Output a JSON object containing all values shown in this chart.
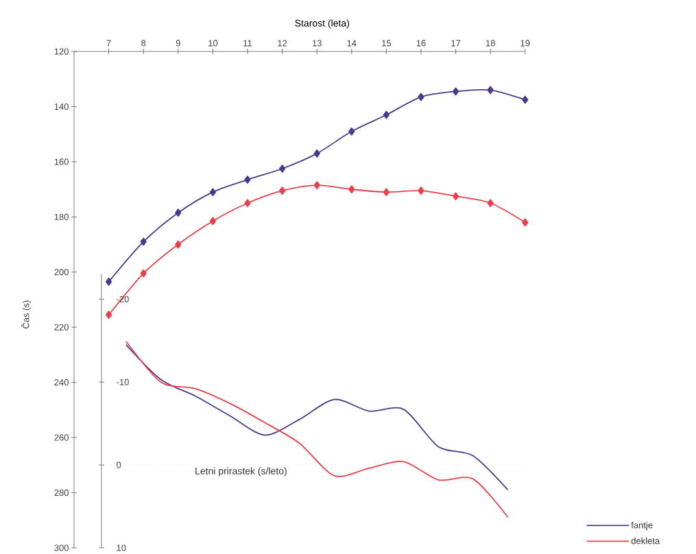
{
  "chart_data": {
    "type": "line",
    "xlabel": "Starost (leta)",
    "ylabel": "Čas (s)",
    "y2label": "Letni prirastek (s/leto)",
    "x": [
      7,
      8,
      9,
      10,
      11,
      12,
      13,
      14,
      15,
      16,
      17,
      18,
      19
    ],
    "series": [
      {
        "color": "#4b3a8c",
        "marker": "diamond",
        "values": [
          203.5,
          189,
          178.5,
          171,
          166.5,
          162.5,
          157,
          149,
          143,
          136.5,
          134.5,
          134,
          137.5
        ]
      },
      {
        "color": "#e8404a",
        "marker": "diamond",
        "values": [
          215.5,
          200.5,
          190,
          181.5,
          175,
          170.5,
          168.5,
          170,
          171,
          170.5,
          172.5,
          175,
          182
        ]
      },
      {
        "name": "fantje",
        "color": "#4b3a8c",
        "axis": "y2",
        "marker": "none",
        "x": [
          7.5,
          8.5,
          9.5,
          10.5,
          11.5,
          12.5,
          13.5,
          14.5,
          15.5,
          16.5,
          17.5,
          18.5
        ],
        "values": [
          -14.5,
          -10.3,
          -8.3,
          -5.9,
          -3.6,
          -5.5,
          -7.9,
          -6.5,
          -6.7,
          -2.2,
          -1.1,
          3.0
        ]
      },
      {
        "name": "dekleta",
        "color": "#e8404a",
        "axis": "y2",
        "marker": "none",
        "x": [
          7.5,
          8.5,
          9.5,
          10.5,
          11.5,
          12.5,
          13.5,
          14.5,
          15.5,
          16.5,
          17.5,
          18.5
        ],
        "values": [
          -14.9,
          -10.0,
          -9.2,
          -7.4,
          -5.1,
          -2.6,
          1.3,
          0.4,
          -0.4,
          1.8,
          1.7,
          6.3
        ]
      }
    ],
    "xlim": [
      6,
      19
    ],
    "xticks": [
      7,
      8,
      9,
      10,
      11,
      12,
      13,
      14,
      15,
      16,
      17,
      18,
      19
    ],
    "ylim": [
      300,
      120
    ],
    "yticks": [
      120,
      140,
      160,
      180,
      200,
      220,
      240,
      260,
      280,
      300
    ],
    "y2lim": [
      10,
      -23
    ],
    "y2ticks": [
      -20,
      -10,
      0,
      10
    ],
    "ref_lines": [
      {
        "axis": "y2",
        "value": 0,
        "color": "#d0d0d0",
        "line_style": "dotted"
      }
    ],
    "grid": false,
    "legend": "bottom right"
  }
}
